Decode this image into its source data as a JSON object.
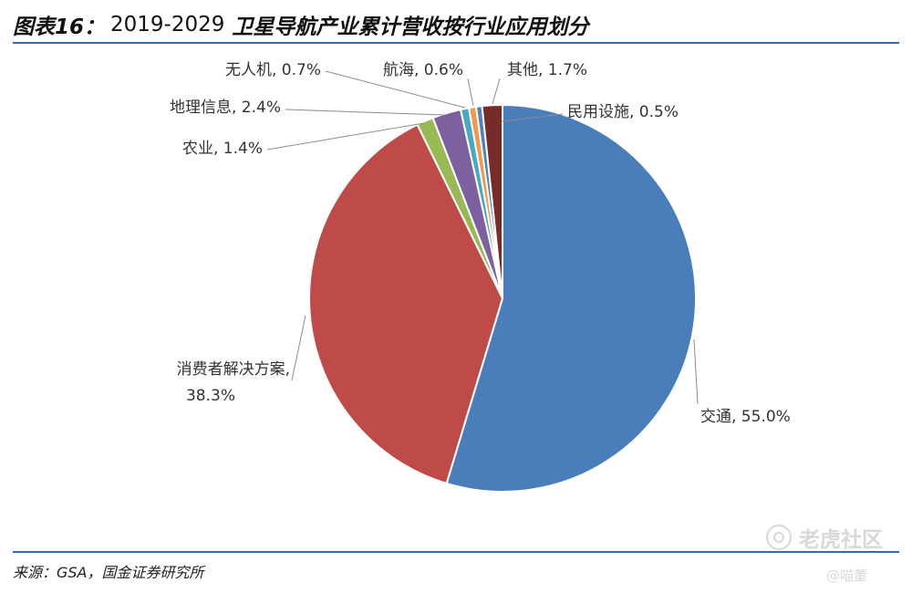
{
  "title": {
    "label": "图表16：",
    "years": "2019-2029",
    "main": "卫星导航产业累计营收按行业应用划分"
  },
  "chart_data": {
    "type": "pie",
    "categories": [
      "交通",
      "消费者解决方案",
      "农业",
      "地理信息",
      "无人机",
      "航海",
      "其他",
      "民用设施"
    ],
    "values": [
      55.0,
      38.3,
      1.4,
      2.4,
      0.7,
      0.6,
      1.7,
      0.5
    ],
    "value_unit": "%",
    "colors": [
      "#4a7ebb",
      "#be4b48",
      "#98b954",
      "#7d60a0",
      "#46aac5",
      "#f79646",
      "#772c2a",
      "#4f81bd"
    ],
    "display_order": [
      0,
      1,
      2,
      3,
      4,
      5,
      7,
      6
    ],
    "labels": [
      {
        "text": "交通, 55.0%"
      },
      {
        "text": "消费者解决方案,",
        "text2": "38.3%"
      },
      {
        "text": "农业, 1.4%"
      },
      {
        "text": "地理信息, 2.4%"
      },
      {
        "text": "无人机, 0.7%"
      },
      {
        "text": "航海, 0.6%"
      },
      {
        "text": "其他, 1.7%"
      },
      {
        "text": "民用设施, 0.5%"
      }
    ]
  },
  "footer": {
    "source": "来源：GSA，国金证券研究所",
    "watermark": "老虎社区",
    "handle": "@喵董"
  }
}
